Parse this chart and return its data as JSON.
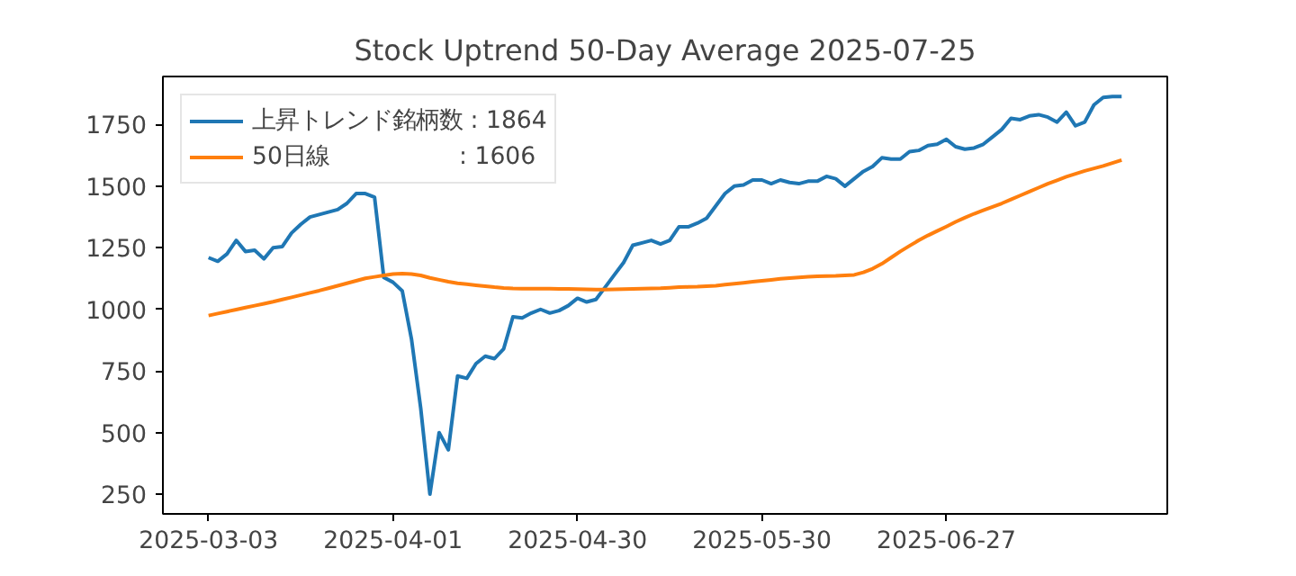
{
  "chart_data": {
    "type": "line",
    "title": "Stock Uptrend 50-Day Average 2025-07-25",
    "categories": [
      "2025-03-03",
      null,
      null,
      null,
      null,
      null,
      null,
      null,
      null,
      null,
      null,
      null,
      null,
      null,
      null,
      null,
      null,
      null,
      null,
      null,
      "2025-04-01",
      null,
      null,
      null,
      null,
      null,
      null,
      null,
      null,
      null,
      null,
      null,
      null,
      null,
      null,
      null,
      null,
      null,
      null,
      null,
      "2025-04-30",
      null,
      null,
      null,
      null,
      null,
      null,
      null,
      null,
      null,
      null,
      null,
      null,
      null,
      null,
      null,
      null,
      null,
      null,
      null,
      "2025-05-30",
      null,
      null,
      null,
      null,
      null,
      null,
      null,
      null,
      null,
      null,
      null,
      null,
      null,
      null,
      null,
      null,
      null,
      null,
      null,
      "2025-06-27",
      null,
      null,
      null,
      null,
      null,
      null,
      null,
      null,
      null,
      null,
      null,
      null,
      null,
      null,
      null,
      null,
      null,
      null,
      null
    ],
    "series": [
      {
        "name": "上昇トレンド銘柄数 : 1864",
        "color": "#1f77b4",
        "values": [
          1210,
          1195,
          1225,
          1280,
          1235,
          1240,
          1205,
          1250,
          1255,
          1310,
          1345,
          1375,
          1385,
          1395,
          1405,
          1430,
          1470,
          1470,
          1455,
          1130,
          1110,
          1075,
          880,
          600,
          250,
          500,
          430,
          730,
          720,
          780,
          810,
          800,
          840,
          970,
          965,
          985,
          1000,
          985,
          995,
          1015,
          1045,
          1030,
          1040,
          1090,
          1140,
          1190,
          1260,
          1270,
          1280,
          1265,
          1280,
          1335,
          1335,
          1350,
          1370,
          1420,
          1470,
          1500,
          1505,
          1525,
          1525,
          1510,
          1525,
          1515,
          1510,
          1520,
          1520,
          1540,
          1530,
          1500,
          1530,
          1560,
          1580,
          1615,
          1610,
          1610,
          1640,
          1645,
          1665,
          1670,
          1690,
          1660,
          1650,
          1655,
          1670,
          1700,
          1730,
          1775,
          1770,
          1785,
          1790,
          1780,
          1760,
          1800,
          1745,
          1760,
          1830,
          1860,
          1864,
          1864
        ]
      },
      {
        "name": "50日線                 : 1606",
        "color": "#ff7f0e",
        "values": [
          975,
          983,
          991,
          999,
          1007,
          1015,
          1023,
          1031,
          1040,
          1049,
          1058,
          1067,
          1076,
          1086,
          1096,
          1106,
          1116,
          1126,
          1132,
          1138,
          1143,
          1145,
          1143,
          1138,
          1128,
          1120,
          1112,
          1106,
          1102,
          1098,
          1094,
          1090,
          1087,
          1085,
          1084,
          1084,
          1084,
          1084,
          1083,
          1083,
          1082,
          1081,
          1080,
          1080,
          1081,
          1082,
          1083,
          1084,
          1085,
          1086,
          1088,
          1090,
          1091,
          1092,
          1094,
          1096,
          1100,
          1104,
          1108,
          1112,
          1116,
          1120,
          1124,
          1127,
          1130,
          1132,
          1134,
          1135,
          1136,
          1138,
          1140,
          1150,
          1165,
          1185,
          1210,
          1235,
          1258,
          1280,
          1300,
          1318,
          1336,
          1355,
          1372,
          1388,
          1402,
          1416,
          1430,
          1446,
          1462,
          1478,
          1494,
          1510,
          1524,
          1538,
          1550,
          1562,
          1572,
          1582,
          1594,
          1606
        ]
      }
    ],
    "ylim": [
      170,
      1945
    ],
    "yticks": [
      250,
      500,
      750,
      1000,
      1250,
      1500,
      1750
    ],
    "legend": "top left",
    "grid": false,
    "marker": "none",
    "line_style": "solid"
  }
}
